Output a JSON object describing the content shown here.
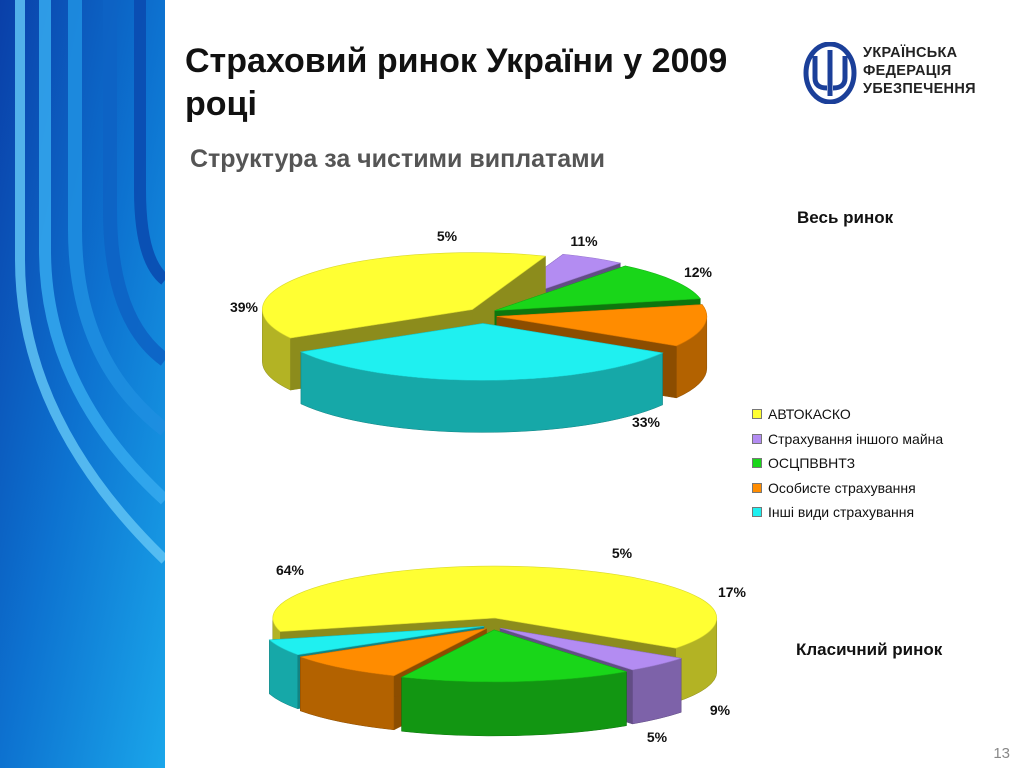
{
  "slide": {
    "title": "Страховий ринок України у 2009 році",
    "subtitle": "Структура за чистими виплатами",
    "page_number": "13"
  },
  "logo": {
    "lines": [
      "УКРАЇНСЬКА",
      "ФЕДЕРАЦІЯ",
      "УБЕЗПЕЧЕННЯ"
    ],
    "color": "#1b3f99"
  },
  "legend": {
    "placement": "right",
    "items": [
      {
        "label": "АВТОКАСКО",
        "color": "#ffff33"
      },
      {
        "label": "Страхування іншого майна",
        "color": "#b38cf2"
      },
      {
        "label": "ОСЦПВВНТЗ",
        "color": "#19d619"
      },
      {
        "label": "Особисте страхування",
        "color": "#ff8c00"
      },
      {
        "label": "Інші види страхування",
        "color": "#1ff0f0"
      }
    ]
  },
  "chart_data": [
    {
      "type": "pie",
      "title": "Весь ринок",
      "categories": [
        "АВТОКАСКО",
        "Страхування іншого майна",
        "ОСЦПВВНТЗ",
        "Особисте страхування",
        "Інші види страхування"
      ],
      "values": [
        39,
        5,
        11,
        12,
        33
      ],
      "labels": [
        "39%",
        "5%",
        "11%",
        "12%",
        "33%"
      ]
    },
    {
      "type": "pie",
      "title": "Класичний ринок",
      "categories": [
        "АВТОКАСКО",
        "Страхування іншого майна",
        "ОСЦПВВНТЗ",
        "Особисте страхування",
        "Інші види страхування"
      ],
      "values": [
        64,
        5,
        17,
        9,
        5
      ],
      "labels": [
        "64%",
        "5%",
        "17%",
        "9%",
        "5%"
      ]
    }
  ]
}
